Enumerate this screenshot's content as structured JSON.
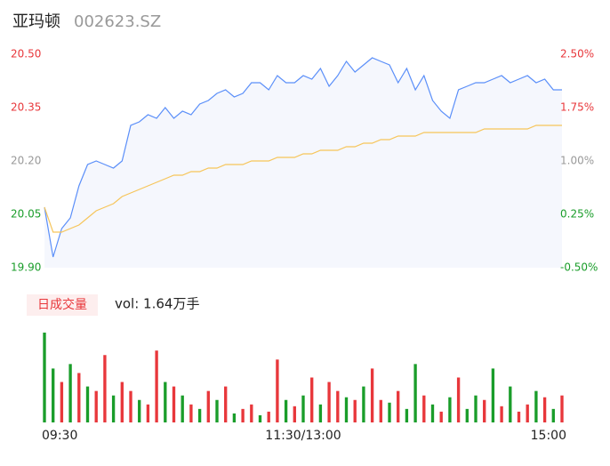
{
  "chart_data": [
    {
      "type": "line",
      "title": "亚玛顿",
      "subtitle": "002623.SZ",
      "x": [
        0,
        4,
        8,
        12,
        16,
        20,
        24,
        28,
        32,
        36,
        40,
        44,
        48,
        52,
        56,
        60,
        64,
        68,
        72,
        76,
        80,
        84,
        88,
        92,
        96,
        100,
        104,
        108,
        112,
        116,
        120,
        124,
        128,
        132,
        136,
        140,
        144,
        148,
        152,
        156,
        160,
        164,
        168,
        172,
        176,
        180,
        184,
        188,
        192,
        196,
        200,
        204,
        208,
        212,
        216,
        220,
        224,
        228,
        232,
        236,
        240
      ],
      "series": [
        {
          "name": "price",
          "color": "#5b8ff9",
          "values": [
            20.07,
            19.93,
            20.01,
            20.04,
            20.13,
            20.19,
            20.2,
            20.19,
            20.18,
            20.2,
            20.3,
            20.31,
            20.33,
            20.32,
            20.35,
            20.32,
            20.34,
            20.33,
            20.36,
            20.37,
            20.39,
            20.4,
            20.38,
            20.39,
            20.42,
            20.42,
            20.4,
            20.44,
            20.42,
            20.42,
            20.44,
            20.43,
            20.46,
            20.41,
            20.44,
            20.48,
            20.45,
            20.47,
            20.49,
            20.48,
            20.47,
            20.42,
            20.46,
            20.4,
            20.44,
            20.37,
            20.34,
            20.32,
            20.4,
            20.41,
            20.42,
            20.42,
            20.43,
            20.44,
            20.42,
            20.43,
            20.44,
            20.42,
            20.43,
            20.4,
            20.4
          ]
        },
        {
          "name": "average",
          "color": "#f6c55a",
          "values": [
            20.07,
            20.0,
            20.0,
            20.01,
            20.02,
            20.04,
            20.06,
            20.07,
            20.08,
            20.1,
            20.11,
            20.12,
            20.13,
            20.14,
            20.15,
            20.16,
            20.16,
            20.17,
            20.17,
            20.18,
            20.18,
            20.19,
            20.19,
            20.19,
            20.2,
            20.2,
            20.2,
            20.21,
            20.21,
            20.21,
            20.22,
            20.22,
            20.23,
            20.23,
            20.23,
            20.24,
            20.24,
            20.25,
            20.25,
            20.26,
            20.26,
            20.27,
            20.27,
            20.27,
            20.28,
            20.28,
            20.28,
            20.28,
            20.28,
            20.28,
            20.28,
            20.29,
            20.29,
            20.29,
            20.29,
            20.29,
            20.29,
            20.3,
            20.3,
            20.3,
            20.3
          ]
        }
      ],
      "xlim": [
        0,
        240
      ],
      "xticks": [
        {
          "value": 0,
          "label": "09:30"
        },
        {
          "value": 120,
          "label": "11:30/13:00"
        },
        {
          "value": 240,
          "label": "15:00"
        }
      ],
      "ylim": [
        19.9,
        20.5
      ],
      "yticks": [
        {
          "value": 20.5,
          "label": "20.50"
        },
        {
          "value": 20.35,
          "label": "20.35"
        },
        {
          "value": 20.2,
          "label": "20.20"
        },
        {
          "value": 20.05,
          "label": "20.05"
        },
        {
          "value": 19.9,
          "label": "19.90"
        }
      ],
      "y2lim": [
        -0.5,
        2.5
      ],
      "y2ticks": [
        {
          "value": 2.5,
          "label": "2.50%"
        },
        {
          "value": 1.75,
          "label": "1.75%"
        },
        {
          "value": 1,
          "label": "1.00%"
        },
        {
          "value": 0.25,
          "label": "0.25%"
        },
        {
          "value": -0.5,
          "label": "-0.50%"
        }
      ],
      "tick_colors": [
        "#e8373b",
        "#e8373b",
        "#999999",
        "#1a9d2a",
        "#1a9d2a"
      ],
      "area_color": "#f5f7fd",
      "grid": false
    },
    {
      "type": "bar",
      "title": "日成交量",
      "subtitle": "vol: 1.64万手",
      "values": [
        100,
        60,
        45,
        65,
        55,
        40,
        35,
        75,
        30,
        45,
        35,
        25,
        20,
        80,
        45,
        40,
        30,
        20,
        15,
        35,
        25,
        40,
        10,
        15,
        20,
        8,
        12,
        70,
        25,
        18,
        30,
        50,
        20,
        45,
        35,
        28,
        25,
        40,
        60,
        25,
        22,
        35,
        15,
        65,
        30,
        20,
        12,
        28,
        50,
        15,
        30,
        25,
        60,
        18,
        40,
        12,
        20,
        35,
        28,
        15,
        30
      ],
      "colors": [
        "#1a9d2a",
        "#1a9d2a",
        "#e8373b",
        "#1a9d2a",
        "#e8373b",
        "#1a9d2a",
        "#e8373b",
        "#e8373b",
        "#1a9d2a",
        "#e8373b",
        "#e8373b",
        "#1a9d2a",
        "#e8373b",
        "#e8373b",
        "#1a9d2a",
        "#e8373b",
        "#1a9d2a",
        "#e8373b",
        "#1a9d2a",
        "#e8373b",
        "#1a9d2a",
        "#e8373b",
        "#1a9d2a",
        "#e8373b",
        "#e8373b",
        "#1a9d2a",
        "#e8373b",
        "#e8373b",
        "#1a9d2a",
        "#e8373b",
        "#1a9d2a",
        "#e8373b",
        "#1a9d2a",
        "#e8373b",
        "#e8373b",
        "#1a9d2a",
        "#e8373b",
        "#1a9d2a",
        "#e8373b",
        "#e8373b",
        "#1a9d2a",
        "#e8373b",
        "#1a9d2a",
        "#1a9d2a",
        "#e8373b",
        "#1a9d2a",
        "#e8373b",
        "#1a9d2a",
        "#e8373b",
        "#1a9d2a",
        "#1a9d2a",
        "#e8373b",
        "#1a9d2a",
        "#e8373b",
        "#1a9d2a",
        "#e8373b",
        "#e8373b",
        "#1a9d2a",
        "#e8373b",
        "#1a9d2a",
        "#e8373b"
      ],
      "ylim": [
        0,
        100
      ]
    }
  ]
}
